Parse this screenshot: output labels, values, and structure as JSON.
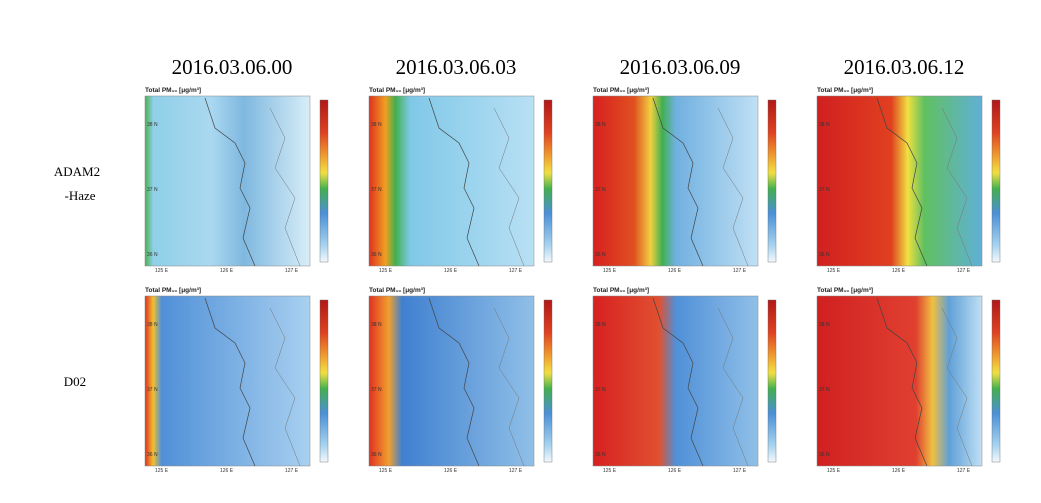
{
  "columns": [
    "2016.03.06.00",
    "2016.03.06.03",
    "2016.03.06.09",
    "2016.03.06.12"
  ],
  "rows": [
    [
      "ADAM2",
      "-Haze"
    ],
    [
      "D02"
    ]
  ],
  "panel": {
    "title": "Total PM₁₀ [μg/m³]",
    "lat_labels": [
      "38 N",
      "37 N",
      "36 N"
    ],
    "lon_labels": [
      "125 E",
      "126 E",
      "127 E"
    ]
  }
}
